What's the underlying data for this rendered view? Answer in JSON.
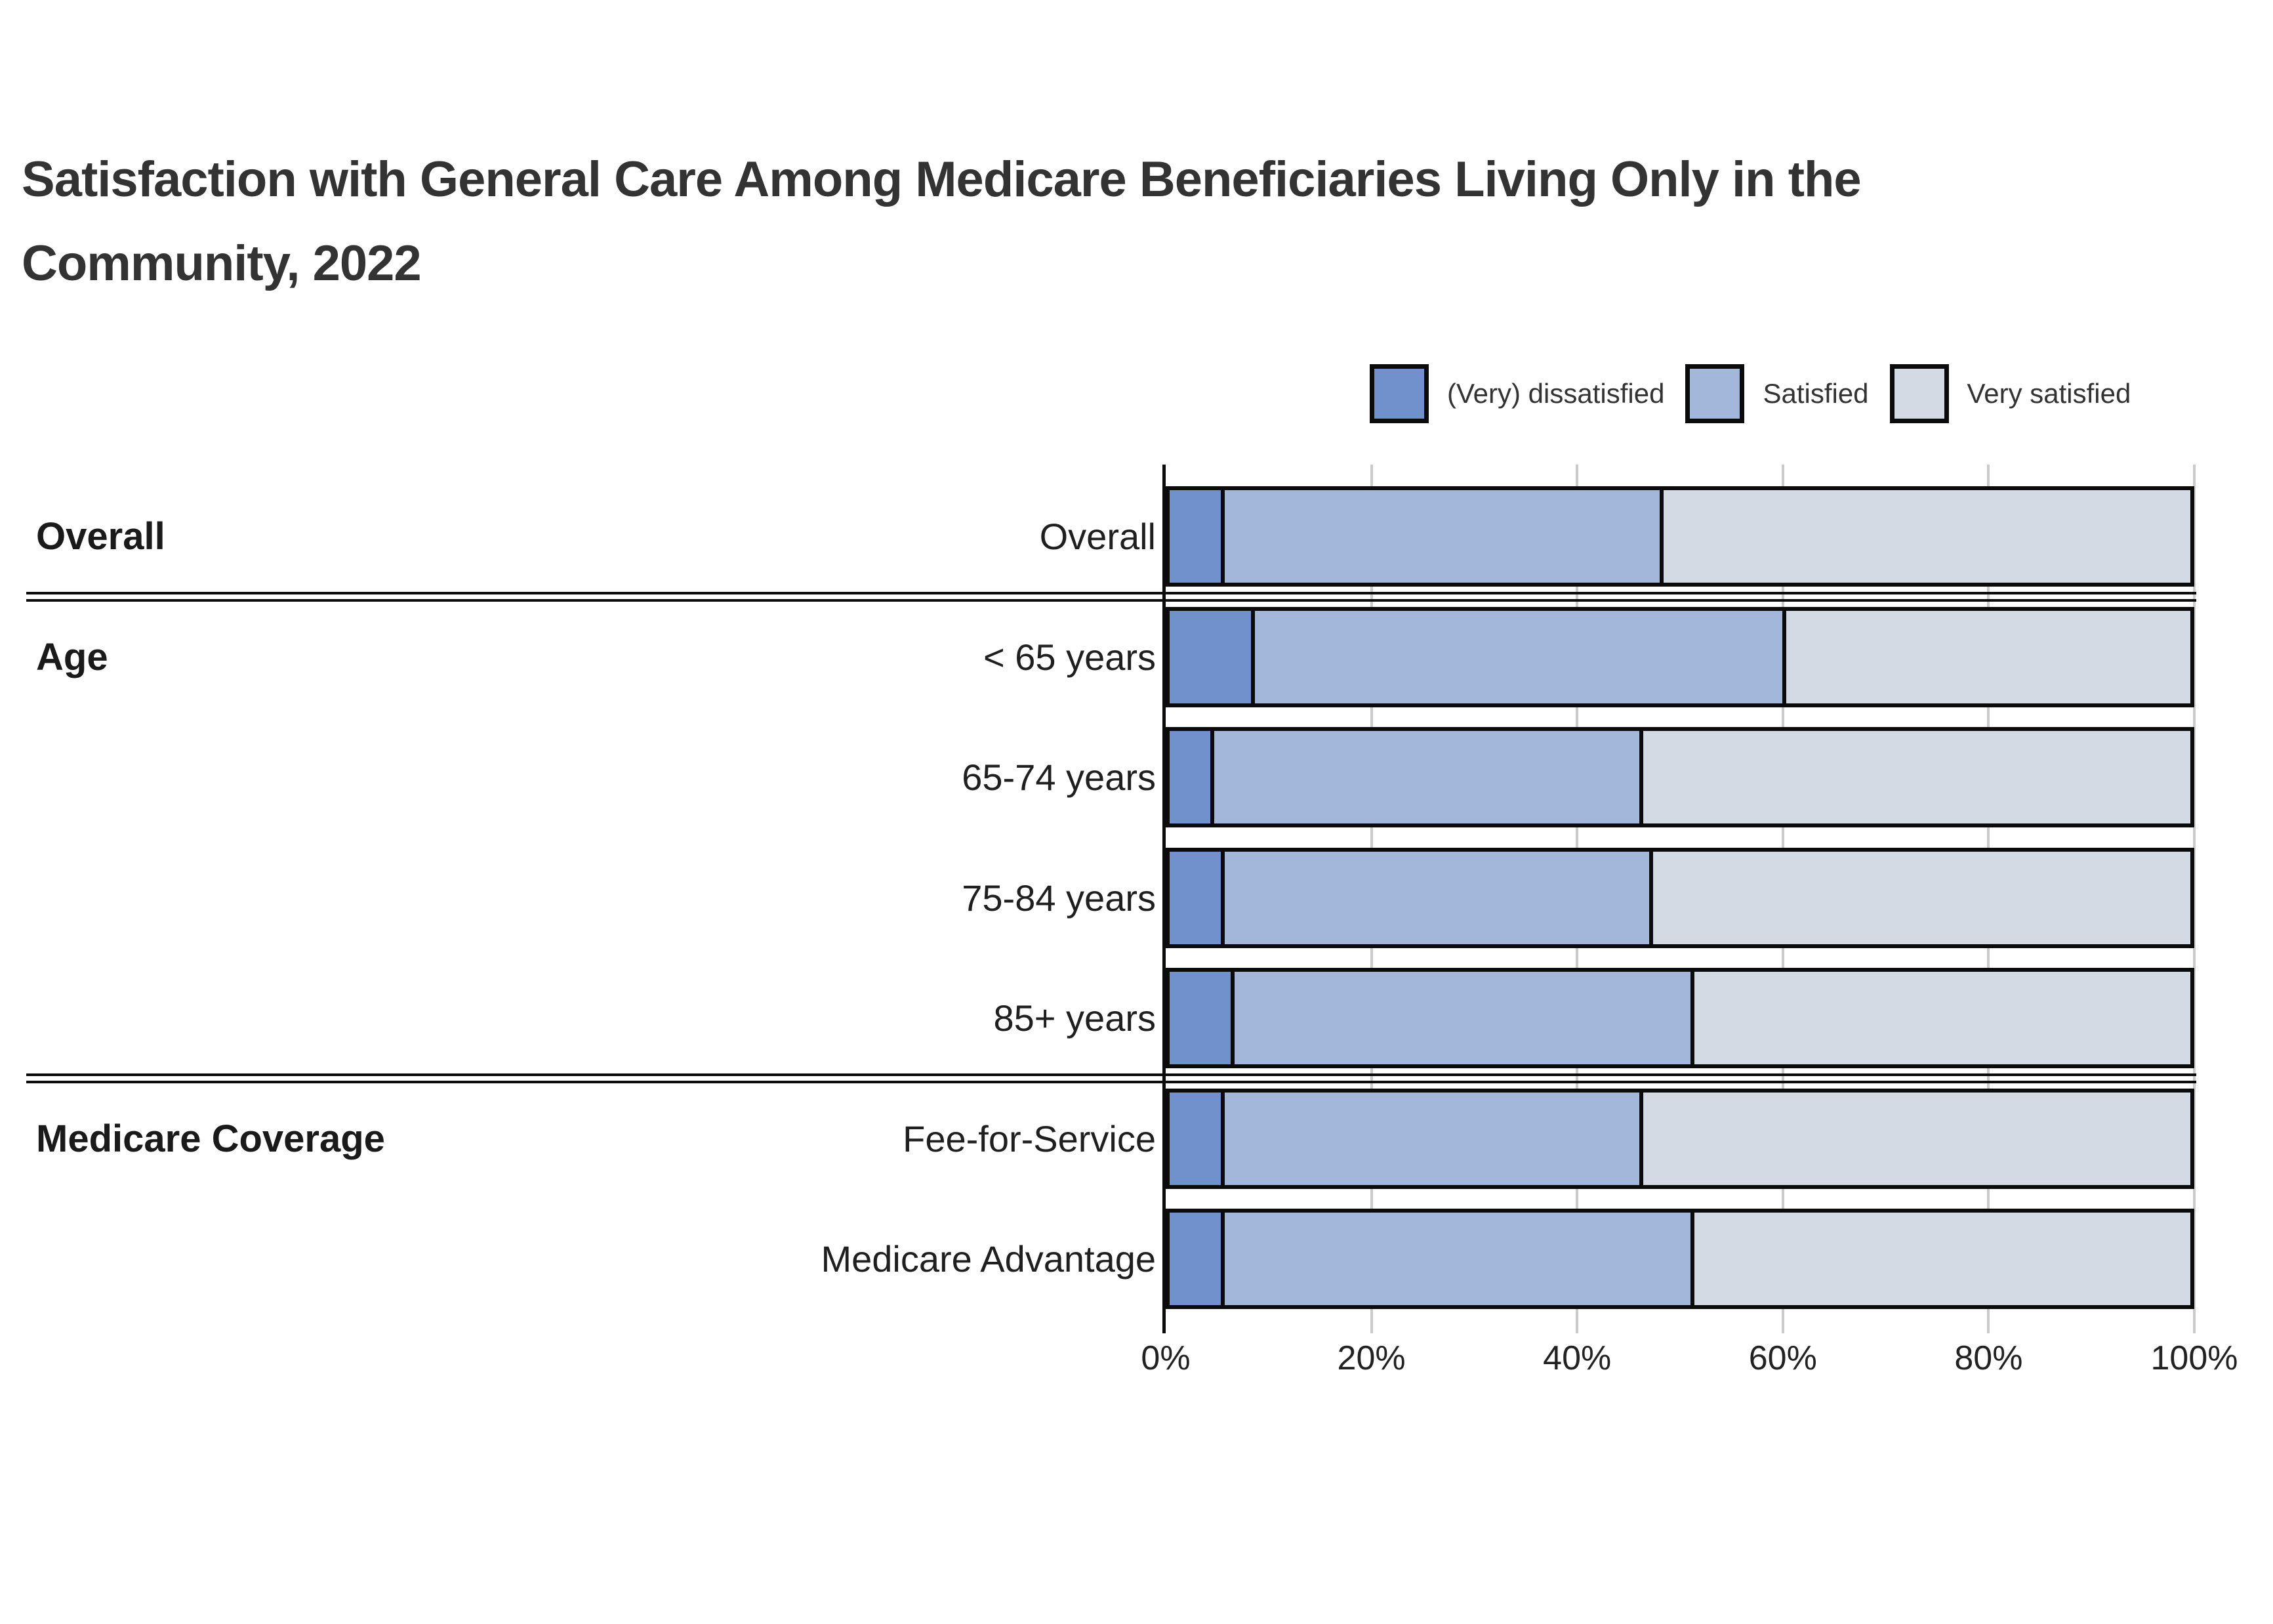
{
  "title": {
    "line1": "Satisfaction with General Care Among Medicare Beneficiaries Living Only in the",
    "line2": "Community, 2022"
  },
  "legend": [
    {
      "label": "(Very) dissatisfied",
      "color": "#7191CD"
    },
    {
      "label": "Satisfied",
      "color": "#A3B7DB"
    },
    {
      "label": "Very satisfied",
      "color": "#D4DAE3"
    }
  ],
  "chart_data": {
    "type": "bar",
    "orientation": "horizontal",
    "stacked": true,
    "unit": "percent",
    "title": "Satisfaction with General Care Among Medicare Beneficiaries Living Only in the Community, 2022",
    "categories": [
      "Overall",
      "< 65 years",
      "65-74 years",
      "75-84 years",
      "85+ years",
      "Fee-for-Service",
      "Medicare Advantage"
    ],
    "groups": [
      {
        "label": "Overall",
        "rows": [
          0
        ]
      },
      {
        "label": "Age",
        "rows": [
          1,
          2,
          3,
          4
        ]
      },
      {
        "label": "Medicare Coverage",
        "rows": [
          5,
          6
        ]
      }
    ],
    "series": [
      {
        "name": "(Very) dissatisfied",
        "color": "#7191CD",
        "values": [
          5,
          8,
          4,
          5,
          6,
          5,
          5
        ]
      },
      {
        "name": "Satisfied",
        "color": "#A3B7DB",
        "values": [
          43,
          52,
          42,
          42,
          45,
          41,
          46
        ]
      },
      {
        "name": "Very satisfied",
        "color": "#D4DAE3",
        "values": [
          52,
          40,
          54,
          53,
          49,
          54,
          49
        ]
      }
    ],
    "x_axis": {
      "range": [
        0,
        100
      ],
      "tick_labels": [
        "0%",
        "20%",
        "40%",
        "60%",
        "80%",
        "100%"
      ],
      "grid": true
    },
    "legend_position": "top-right",
    "colors": {
      "bar_border": "#0b0b0b",
      "gridline": "#cbcbcb",
      "separator": "#0b0b0b",
      "text": "#1f1f1f"
    }
  }
}
